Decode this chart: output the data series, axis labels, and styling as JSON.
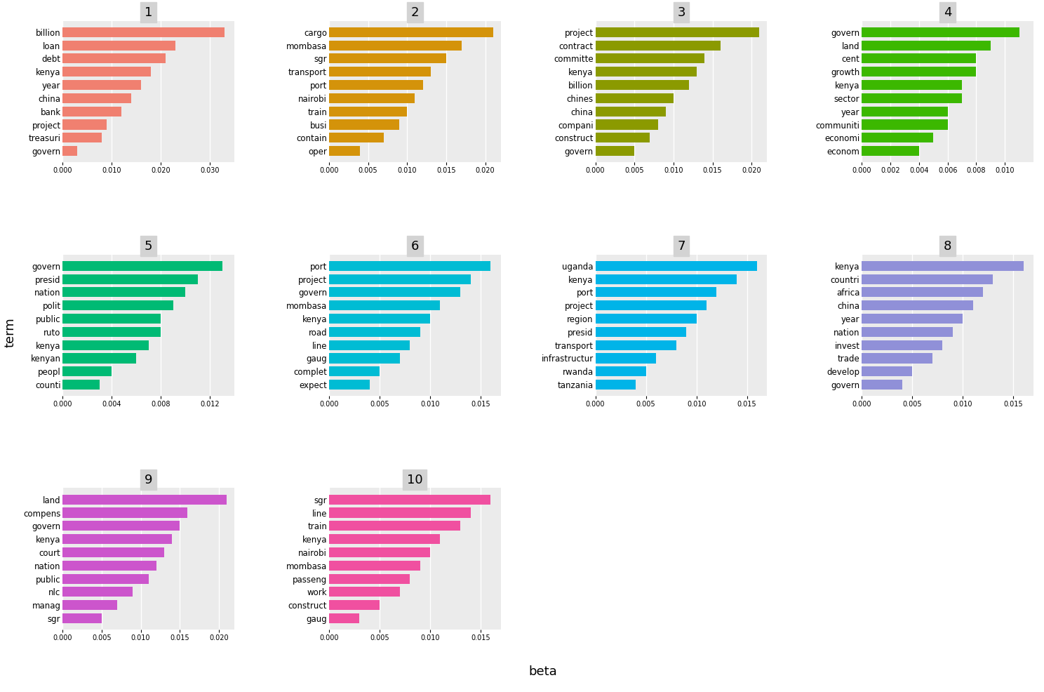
{
  "topics": [
    {
      "id": 1,
      "color": "#F08070",
      "terms": [
        "govern",
        "treasuri",
        "project",
        "bank",
        "china",
        "year",
        "kenya",
        "debt",
        "loan",
        "billion"
      ],
      "values": [
        0.003,
        0.008,
        0.009,
        0.012,
        0.014,
        0.016,
        0.018,
        0.021,
        0.023,
        0.033
      ]
    },
    {
      "id": 2,
      "color": "#D4930A",
      "terms": [
        "oper",
        "contain",
        "busi",
        "train",
        "nairobi",
        "port",
        "transport",
        "sgr",
        "mombasa",
        "cargo"
      ],
      "values": [
        0.004,
        0.007,
        0.009,
        0.01,
        0.011,
        0.012,
        0.013,
        0.015,
        0.017,
        0.021
      ]
    },
    {
      "id": 3,
      "color": "#8B9A00",
      "terms": [
        "govern",
        "construct",
        "compani",
        "china",
        "chines",
        "billion",
        "kenya",
        "committe",
        "contract",
        "project"
      ],
      "values": [
        0.005,
        0.007,
        0.008,
        0.009,
        0.01,
        0.012,
        0.013,
        0.014,
        0.016,
        0.021
      ]
    },
    {
      "id": 4,
      "color": "#3CB800",
      "terms": [
        "econom",
        "economi",
        "communiti",
        "year",
        "sector",
        "kenya",
        "growth",
        "cent",
        "land",
        "govern"
      ],
      "values": [
        0.004,
        0.005,
        0.006,
        0.006,
        0.007,
        0.007,
        0.008,
        0.008,
        0.009,
        0.011
      ]
    },
    {
      "id": 5,
      "color": "#00BA74",
      "terms": [
        "counti",
        "peopl",
        "kenyan",
        "kenya",
        "ruto",
        "public",
        "polit",
        "nation",
        "presid",
        "govern"
      ],
      "values": [
        0.003,
        0.004,
        0.006,
        0.007,
        0.008,
        0.008,
        0.009,
        0.01,
        0.011,
        0.013
      ]
    },
    {
      "id": 6,
      "color": "#00BCD4",
      "terms": [
        "expect",
        "complet",
        "gaug",
        "line",
        "road",
        "kenya",
        "mombasa",
        "govern",
        "project",
        "port"
      ],
      "values": [
        0.004,
        0.005,
        0.007,
        0.008,
        0.009,
        0.01,
        0.011,
        0.013,
        0.014,
        0.016
      ]
    },
    {
      "id": 7,
      "color": "#00B4E8",
      "terms": [
        "tanzania",
        "rwanda",
        "infrastructur",
        "transport",
        "presid",
        "region",
        "project",
        "port",
        "kenya",
        "uganda"
      ],
      "values": [
        0.004,
        0.005,
        0.006,
        0.008,
        0.009,
        0.01,
        0.011,
        0.012,
        0.014,
        0.016
      ]
    },
    {
      "id": 8,
      "color": "#9090D8",
      "terms": [
        "govern",
        "develop",
        "trade",
        "invest",
        "nation",
        "year",
        "china",
        "africa",
        "countri",
        "kenya"
      ],
      "values": [
        0.004,
        0.005,
        0.007,
        0.008,
        0.009,
        0.01,
        0.011,
        0.012,
        0.013,
        0.016
      ]
    },
    {
      "id": 9,
      "color": "#CC55CC",
      "terms": [
        "sgr",
        "manag",
        "nlc",
        "public",
        "nation",
        "court",
        "kenya",
        "govern",
        "compens",
        "land"
      ],
      "values": [
        0.005,
        0.007,
        0.009,
        0.011,
        0.012,
        0.013,
        0.014,
        0.015,
        0.016,
        0.021
      ]
    },
    {
      "id": 10,
      "color": "#F050A0",
      "terms": [
        "gaug",
        "construct",
        "work",
        "passeng",
        "mombasa",
        "nairobi",
        "kenya",
        "train",
        "line",
        "sgr"
      ],
      "values": [
        0.003,
        0.005,
        0.007,
        0.008,
        0.009,
        0.01,
        0.011,
        0.013,
        0.014,
        0.016
      ]
    }
  ],
  "xlabel": "beta",
  "ylabel": "term",
  "xlim_overrides": [
    0.035,
    0.022,
    0.022,
    0.012,
    0.014,
    0.017,
    0.017,
    0.017,
    0.022,
    0.017
  ],
  "xtick_sets": [
    [
      0.0,
      0.01,
      0.02,
      0.03
    ],
    [
      0.0,
      0.005,
      0.01,
      0.015,
      0.02
    ],
    [
      0.0,
      0.005,
      0.01,
      0.015,
      0.02
    ],
    [
      0.0,
      0.002,
      0.004,
      0.006,
      0.008,
      0.01
    ],
    [
      0.0,
      0.004,
      0.008,
      0.012
    ],
    [
      0.0,
      0.005,
      0.01,
      0.015
    ],
    [
      0.0,
      0.005,
      0.01,
      0.015
    ],
    [
      0.0,
      0.005,
      0.01,
      0.015
    ],
    [
      0.0,
      0.005,
      0.01,
      0.015,
      0.02
    ],
    [
      0.0,
      0.005,
      0.01,
      0.015
    ]
  ]
}
